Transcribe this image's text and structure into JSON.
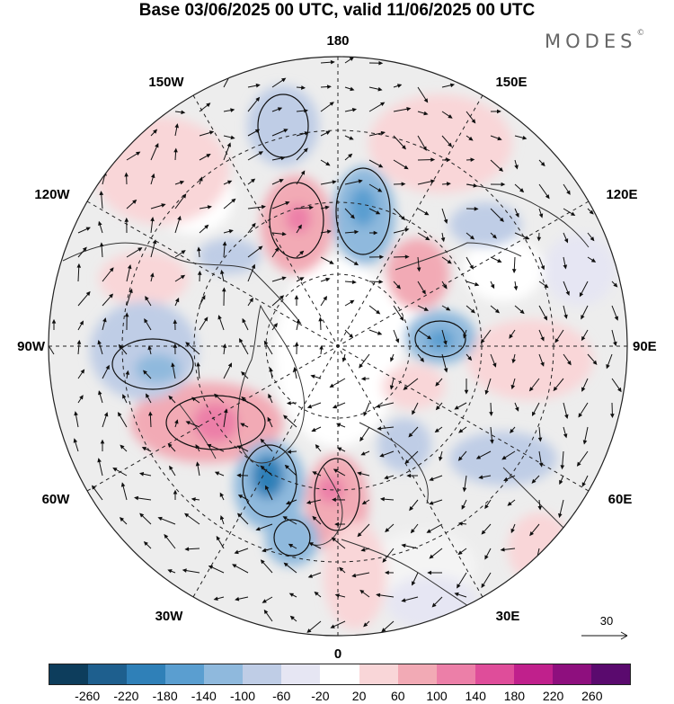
{
  "title": "Base 03/06/2025 00 UTC, valid 11/06/2025 00 UTC",
  "brand": {
    "name": "MODES",
    "mark": "©"
  },
  "longitude_labels": {
    "top": "180",
    "bottom": "0",
    "left": "90W",
    "right": "90E",
    "upper_left_1": "150W",
    "upper_left_2": "120W",
    "upper_right_1": "150E",
    "upper_right_2": "120E",
    "lower_left_1": "60W",
    "lower_left_2": "30W",
    "lower_right_1": "60E",
    "lower_right_2": "30E"
  },
  "vector_key": {
    "label": "30"
  },
  "colorbar": {
    "colors": [
      "#0d3d5c",
      "#1e5f8e",
      "#2f80b8",
      "#5a9ed0",
      "#8fb9dd",
      "#bfcde6",
      "#e6e6f3",
      "#ffffff",
      "#f9d6d8",
      "#f2aab5",
      "#ec7fa8",
      "#df4d9a",
      "#c0208c",
      "#8e0f7e",
      "#5a0a6e"
    ],
    "ticks": [
      "-260",
      "-220",
      "-180",
      "-140",
      "-100",
      "-60",
      "-20",
      "20",
      "60",
      "100",
      "140",
      "180",
      "220",
      "260"
    ]
  },
  "map": {
    "projection": "north polar stereographic",
    "field": "shaded anomaly with wind vectors",
    "colors": {
      "coast": "#333333",
      "grid": "#222222",
      "background": "#ffffff",
      "neutral_fill": "#ededed"
    }
  }
}
